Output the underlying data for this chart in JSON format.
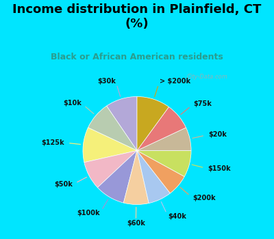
{
  "title": "Income distribution in Plainfield, CT\n(%)",
  "subtitle": "Black or African American residents",
  "labels": [
    "$30k",
    "$10k",
    "$125k",
    "$50k",
    "$100k",
    "$60k",
    "$40k",
    "$200k",
    "$150k",
    "$20k",
    "$75k",
    "> $200k"
  ],
  "values": [
    9.5,
    8.5,
    10.5,
    8.5,
    9.0,
    7.5,
    7.0,
    6.5,
    8.0,
    7.0,
    8.0,
    10.0
  ],
  "colors": [
    "#b3a8d8",
    "#b8ccb0",
    "#f5f07a",
    "#f2b8c6",
    "#9898d8",
    "#f5cfa0",
    "#a8c8f0",
    "#f0a060",
    "#c8e060",
    "#c8b898",
    "#e87878",
    "#c8a820"
  ],
  "background_top": "#00e5ff",
  "background_chart": "#ddf0e8",
  "title_color": "#000000",
  "subtitle_color": "#2a9d8f",
  "watermark": "City-Data.com",
  "startangle": 90,
  "label_fontsize": 7.0,
  "title_fontsize": 13,
  "subtitle_fontsize": 9
}
